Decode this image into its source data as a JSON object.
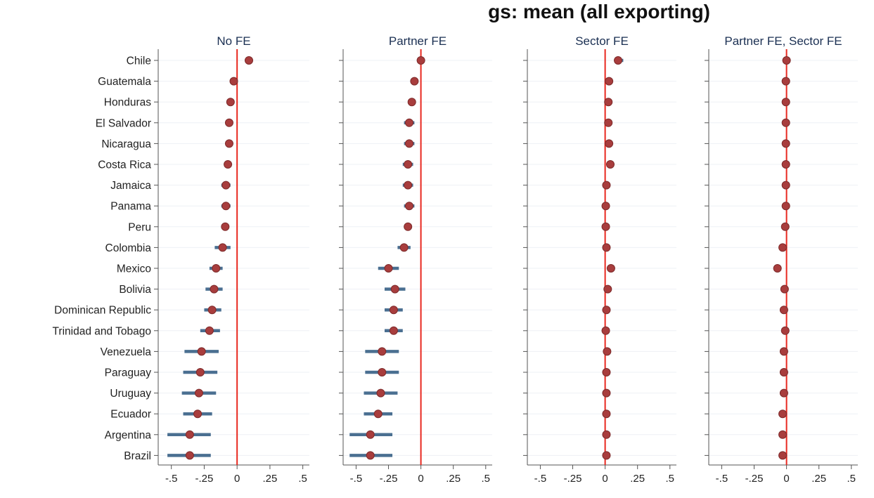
{
  "header": {
    "title_fragment": "gs: mean (all exporting)"
  },
  "chart_data": {
    "type": "scatter",
    "style": "coefficient plot with confidence intervals",
    "categories": [
      "Chile",
      "Guatemala",
      "Honduras",
      "El Salvador",
      "Nicaragua",
      "Costa Rica",
      "Jamaica",
      "Panama",
      "Peru",
      "Colombia",
      "Mexico",
      "Bolivia",
      "Dominican Republic",
      "Trinidad and Tobago",
      "Venezuela",
      "Paraguay",
      "Uruguay",
      "Ecuador",
      "Argentina",
      "Brazil"
    ],
    "xlim": [
      -0.6,
      0.55
    ],
    "xticks": [
      -0.5,
      -0.25,
      0,
      0.25,
      0.5
    ],
    "xtick_labels": [
      "-.5",
      "-.25",
      "0",
      ".25",
      ".5"
    ],
    "reference_line_x": 0,
    "colors": {
      "marker": "#a83d3d",
      "marker_edge": "#7d2a2a",
      "ci": "#4a6f91",
      "reference": "#e8281f",
      "grid": "#eef0f5",
      "axis": "#555555",
      "title": "#1a2f52"
    },
    "panels": [
      {
        "title": "No FE",
        "estimates": [
          0.09,
          -0.025,
          -0.05,
          -0.06,
          -0.06,
          -0.07,
          -0.085,
          -0.085,
          -0.09,
          -0.11,
          -0.16,
          -0.175,
          -0.19,
          -0.21,
          -0.27,
          -0.28,
          -0.29,
          -0.3,
          -0.36,
          -0.36
        ],
        "ci_low": [
          0.06,
          -0.035,
          -0.062,
          -0.08,
          -0.08,
          -0.095,
          -0.12,
          -0.12,
          -0.12,
          -0.17,
          -0.21,
          -0.24,
          -0.25,
          -0.28,
          -0.4,
          -0.41,
          -0.42,
          -0.41,
          -0.53,
          -0.53
        ],
        "ci_high": [
          0.12,
          -0.015,
          -0.038,
          -0.04,
          -0.04,
          -0.045,
          -0.05,
          -0.05,
          -0.06,
          -0.05,
          -0.11,
          -0.11,
          -0.12,
          -0.13,
          -0.14,
          -0.15,
          -0.16,
          -0.19,
          -0.2,
          -0.2
        ]
      },
      {
        "title": "Partner FE",
        "estimates": [
          0.0,
          -0.05,
          -0.07,
          -0.09,
          -0.09,
          -0.1,
          -0.1,
          -0.09,
          -0.1,
          -0.13,
          -0.25,
          -0.2,
          -0.21,
          -0.21,
          -0.3,
          -0.3,
          -0.31,
          -0.33,
          -0.39,
          -0.39
        ],
        "ci_low": [
          -0.01,
          -0.06,
          -0.1,
          -0.13,
          -0.13,
          -0.14,
          -0.14,
          -0.13,
          -0.13,
          -0.18,
          -0.33,
          -0.28,
          -0.28,
          -0.28,
          -0.43,
          -0.43,
          -0.44,
          -0.44,
          -0.55,
          -0.55
        ],
        "ci_high": [
          0.01,
          -0.04,
          -0.04,
          -0.05,
          -0.05,
          -0.06,
          -0.06,
          -0.05,
          -0.07,
          -0.08,
          -0.17,
          -0.12,
          -0.14,
          -0.14,
          -0.17,
          -0.17,
          -0.18,
          -0.22,
          -0.22,
          -0.22
        ]
      },
      {
        "title": "Sector FE",
        "estimates": [
          0.1,
          0.03,
          0.025,
          0.025,
          0.03,
          0.04,
          0.01,
          0.005,
          0.005,
          0.01,
          0.045,
          0.02,
          0.01,
          0.005,
          0.015,
          0.01,
          0.01,
          0.01,
          0.01,
          0.01
        ],
        "ci_low": [
          0.07,
          0.02,
          0.015,
          0.015,
          0.02,
          0.03,
          0.0,
          -0.005,
          -0.005,
          0.0,
          0.03,
          0.01,
          0.0,
          -0.005,
          0.005,
          0.0,
          0.0,
          0.0,
          0.0,
          0.0
        ],
        "ci_high": [
          0.14,
          0.04,
          0.035,
          0.035,
          0.04,
          0.05,
          0.02,
          0.015,
          0.015,
          0.02,
          0.06,
          0.03,
          0.02,
          0.015,
          0.025,
          0.02,
          0.02,
          0.02,
          0.02,
          0.02
        ]
      },
      {
        "title": "Partner FE, Sector FE",
        "estimates": [
          0.0,
          -0.005,
          -0.005,
          -0.005,
          -0.005,
          -0.005,
          -0.005,
          -0.005,
          -0.01,
          -0.03,
          -0.07,
          -0.015,
          -0.02,
          -0.01,
          -0.02,
          -0.02,
          -0.02,
          -0.03,
          -0.03,
          -0.03
        ],
        "ci_low": [
          -0.01,
          -0.015,
          -0.015,
          -0.015,
          -0.015,
          -0.015,
          -0.015,
          -0.015,
          -0.02,
          -0.04,
          -0.08,
          -0.025,
          -0.03,
          -0.02,
          -0.03,
          -0.03,
          -0.03,
          -0.04,
          -0.04,
          -0.04
        ],
        "ci_high": [
          0.01,
          0.005,
          0.005,
          0.005,
          0.005,
          0.005,
          0.005,
          0.005,
          0.0,
          -0.02,
          -0.06,
          -0.005,
          -0.01,
          0.0,
          -0.01,
          -0.01,
          -0.01,
          -0.02,
          -0.02,
          -0.02
        ]
      }
    ]
  }
}
